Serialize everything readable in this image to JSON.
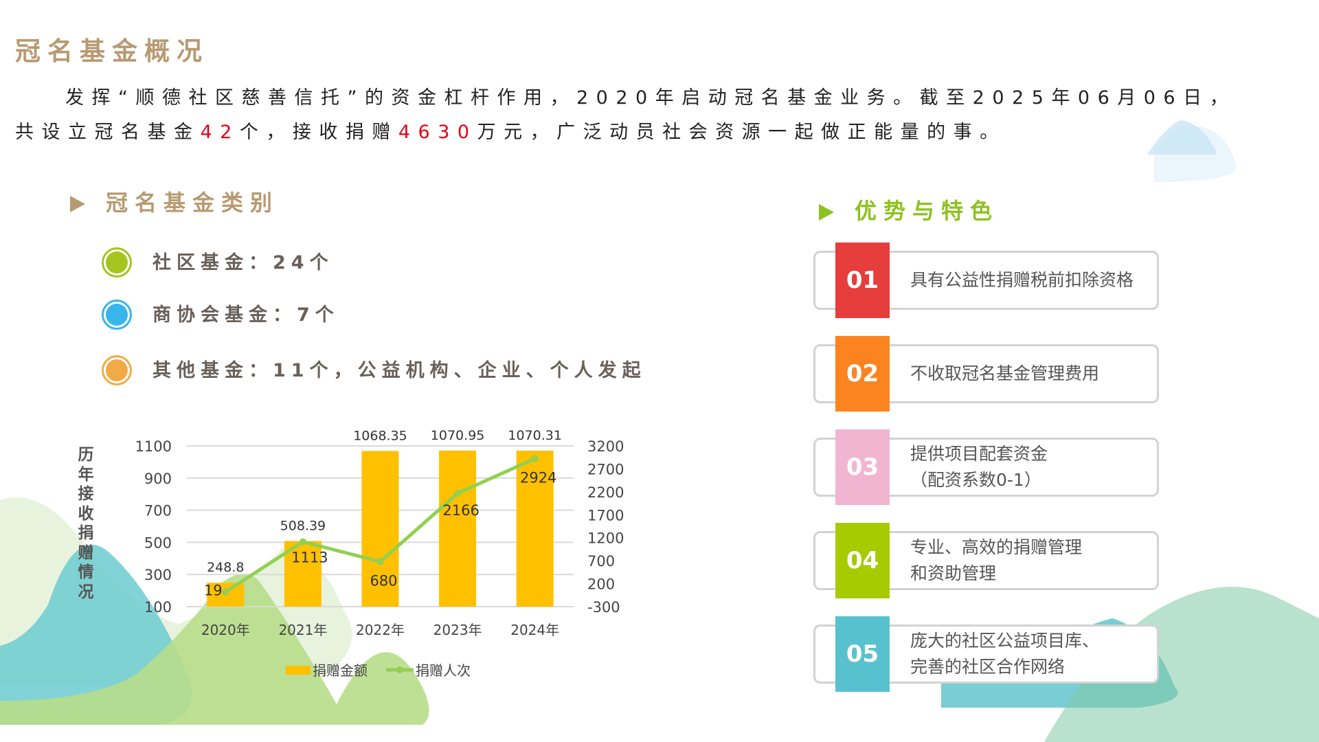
{
  "title": "冠名基金概况",
  "intro": {
    "line1": "发挥“顺德社区慈善信托”的资金杠杆作用，2020年启动冠名基金业务。截至2025年06月06日，",
    "line2_a": "共设立冠名基金",
    "fund_count": "42",
    "line2_b": "个，接收捐赠",
    "donation_total": "4630",
    "line2_c": "万元，广泛动员社会资源一起做正能量的事。"
  },
  "categories": {
    "heading": "冠名基金类别",
    "items": [
      {
        "label": "社区基金：24个",
        "color": "#a5c41d"
      },
      {
        "label": "商协会基金：7个",
        "color": "#36b6ea"
      },
      {
        "label": "其他基金：11个，公益机构、企业、个人发起",
        "color": "#f2aa44"
      }
    ]
  },
  "features": {
    "heading": "优势与特色",
    "items": [
      {
        "num": "01",
        "line1": "具有公益性捐赠税前扣除资格",
        "line2": "",
        "color": "#e63e3c"
      },
      {
        "num": "02",
        "line1": "不收取冠名基金管理费用",
        "line2": "",
        "color": "#fb8421"
      },
      {
        "num": "03",
        "line1": "提供项目配套资金",
        "line2": "（配资系数0-1）",
        "color": "#f2b5d1"
      },
      {
        "num": "04",
        "line1": "专业、高效的捐赠管理",
        "line2": "和资助管理",
        "color": "#a8cb00"
      },
      {
        "num": "05",
        "line1": "庞大的社区公益项目库、",
        "line2": "完善的社区合作网络",
        "color": "#58c1d0"
      }
    ]
  },
  "chart_data": {
    "type": "bar+line",
    "ylabel": "历年接收捐赠情况",
    "categories": [
      "2020年",
      "2021年",
      "2022年",
      "2023年",
      "2024年"
    ],
    "ylim": [
      100,
      1100
    ],
    "yticks": [
      100,
      300,
      500,
      700,
      900,
      1100
    ],
    "y2lim": [
      -300,
      3200
    ],
    "y2ticks": [
      -300,
      200,
      700,
      1200,
      1700,
      2200,
      2700,
      3200
    ],
    "grid": true,
    "legend": "bottom",
    "series": [
      {
        "name": "捐赠金额",
        "type": "bar",
        "axis": "left",
        "color": "#ffc000",
        "values": [
          248.8,
          508.39,
          1068.35,
          1070.95,
          1070.31
        ],
        "labels": [
          "248.8",
          "508.39",
          "1068.35",
          "1070.95",
          "1070.31"
        ]
      },
      {
        "name": "捐赠人次",
        "type": "line",
        "axis": "right",
        "color": "#92d050",
        "values": [
          19,
          1113,
          680,
          2166,
          2924
        ],
        "labels": [
          "19",
          "1113",
          "680",
          "2166",
          "2924"
        ]
      }
    ]
  }
}
